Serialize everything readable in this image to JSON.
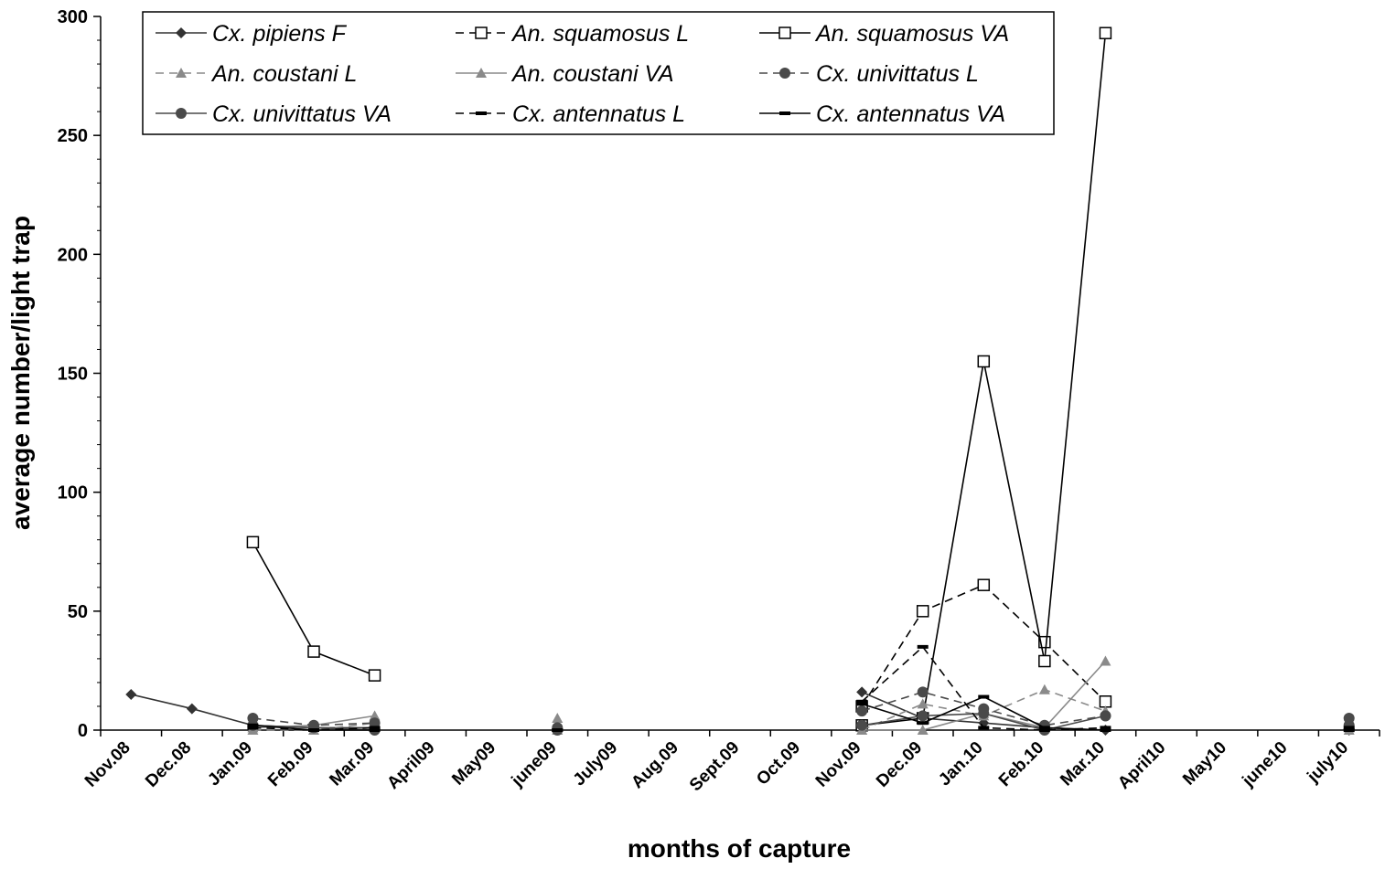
{
  "chart_data": {
    "type": "line",
    "title": "",
    "xlabel": "months of capture",
    "ylabel": "average number/light trap",
    "ylim": [
      0,
      300
    ],
    "yticks": [
      0,
      50,
      100,
      150,
      200,
      250,
      300
    ],
    "grid": false,
    "legend_position": "top-left",
    "categories": [
      "Nov.08",
      "Dec.08",
      "Jan.09",
      "Feb.09",
      "Mar.09",
      "April09",
      "May09",
      "june09",
      "July09",
      "Aug.09",
      "Sept.09",
      "Oct.09",
      "Nov.09",
      "Dec.09",
      "Jan.10",
      "Feb.10",
      "Mar.10",
      "April10",
      "May10",
      "june10",
      "july10"
    ],
    "series": [
      {
        "name": "Cx. pipiens F",
        "marker": "diamond",
        "dash": "solid",
        "color": "#333333",
        "values": [
          15,
          9,
          2,
          1,
          1,
          null,
          null,
          0,
          null,
          null,
          null,
          null,
          16,
          5,
          3,
          1,
          0,
          null,
          null,
          null,
          0
        ]
      },
      {
        "name": "An. squamosus L",
        "marker": "square-open",
        "dash": "dashed",
        "color": "#000000",
        "values": [
          null,
          null,
          null,
          null,
          null,
          null,
          null,
          null,
          null,
          null,
          null,
          null,
          10,
          50,
          61,
          37,
          12,
          null,
          null,
          null,
          null
        ]
      },
      {
        "name": "An. squamosus VA",
        "marker": "square-open",
        "dash": "solid",
        "color": "#000000",
        "values": [
          null,
          null,
          79,
          33,
          23,
          null,
          null,
          null,
          null,
          null,
          null,
          null,
          2,
          5,
          155,
          29,
          293,
          null,
          null,
          null,
          null
        ]
      },
      {
        "name": "An. coustani L",
        "marker": "triangle",
        "dash": "dashed",
        "color": "#8a8a8a",
        "values": [
          null,
          null,
          0,
          0,
          3,
          null,
          null,
          0,
          null,
          null,
          null,
          null,
          0,
          11,
          6,
          17,
          8,
          null,
          null,
          null,
          0
        ]
      },
      {
        "name": "An. coustani VA",
        "marker": "triangle",
        "dash": "solid",
        "color": "#8a8a8a",
        "values": [
          null,
          null,
          1,
          2,
          6,
          null,
          null,
          5,
          null,
          null,
          null,
          null,
          0,
          0,
          7,
          1,
          29,
          null,
          null,
          null,
          1
        ]
      },
      {
        "name": "Cx. univittatus L",
        "marker": "circle",
        "dash": "dashed",
        "color": "#4a4a4a",
        "values": [
          null,
          null,
          5,
          2,
          3,
          null,
          null,
          1,
          null,
          null,
          null,
          null,
          8,
          16,
          9,
          2,
          6,
          null,
          null,
          null,
          2
        ]
      },
      {
        "name": "Cx. univittatus VA",
        "marker": "circle",
        "dash": "solid",
        "color": "#4a4a4a",
        "values": [
          null,
          null,
          2,
          1,
          0,
          null,
          null,
          0,
          null,
          null,
          null,
          null,
          2,
          6,
          7,
          0,
          6,
          null,
          null,
          null,
          5
        ]
      },
      {
        "name": "Cx. antennatus L",
        "marker": "dash",
        "dash": "dashed",
        "color": "#000000",
        "values": [
          null,
          null,
          1,
          0,
          1,
          null,
          null,
          0,
          null,
          null,
          null,
          null,
          12,
          35,
          1,
          0,
          1,
          null,
          null,
          null,
          0
        ]
      },
      {
        "name": "Cx. antennatus VA",
        "marker": "dash",
        "dash": "solid",
        "color": "#000000",
        "values": [
          null,
          null,
          2,
          0,
          0,
          null,
          null,
          0,
          null,
          null,
          null,
          null,
          11,
          3,
          14,
          1,
          0,
          null,
          null,
          null,
          1
        ]
      }
    ]
  }
}
